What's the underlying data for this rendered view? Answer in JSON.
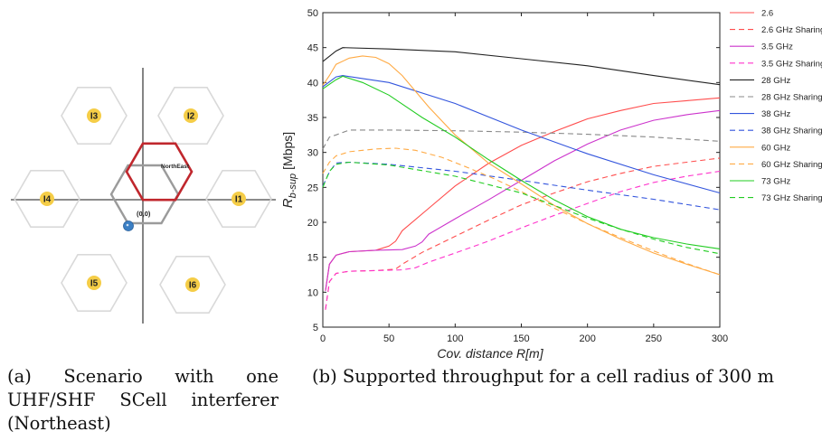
{
  "scenario": {
    "cells": [
      {
        "id": "I3"
      },
      {
        "id": "I2"
      },
      {
        "id": "I4"
      },
      {
        "id": "I1"
      },
      {
        "id": "I5"
      },
      {
        "id": "I6"
      }
    ],
    "northeast_label": "NorthEast",
    "origin_label": "(0,0)",
    "colors": {
      "hex": "#d9d9d9",
      "center": "#9b9b9b",
      "northeast": "#c0272d",
      "axis": "#666666",
      "badge": "#f5cd47",
      "user": "#3b7fc4"
    }
  },
  "captions": {
    "a": [
      "(a) Scenario with one",
      "UHF/SHF SCell interferer",
      "(Northeast)"
    ],
    "b": "(b) Supported throughput for a cell radius of 300 m"
  },
  "chart_data": {
    "type": "line",
    "xlabel": "Cov. distance R[m]",
    "ylabel_main": "R",
    "ylabel_sub": "b-sup",
    "ylabel_unit": "[Mbps]",
    "xlim": [
      0,
      300
    ],
    "ylim": [
      5,
      50
    ],
    "xticks": [
      0,
      50,
      100,
      150,
      200,
      250,
      300
    ],
    "yticks": [
      5,
      10,
      15,
      20,
      25,
      30,
      35,
      40,
      45,
      50
    ],
    "grid": false,
    "legend_position": "right",
    "series": [
      {
        "name": "2.6",
        "color": "#ff4d4d",
        "dash": "solid",
        "points": [
          [
            2,
            10.2
          ],
          [
            5,
            14
          ],
          [
            10,
            15.3
          ],
          [
            20,
            15.8
          ],
          [
            40,
            16
          ],
          [
            50,
            16.6
          ],
          [
            55,
            17.3
          ],
          [
            60,
            18.8
          ],
          [
            80,
            22
          ],
          [
            100,
            25.2
          ],
          [
            125,
            28.4
          ],
          [
            150,
            31
          ],
          [
            175,
            33
          ],
          [
            200,
            34.8
          ],
          [
            225,
            36
          ],
          [
            250,
            37
          ],
          [
            275,
            37.4
          ],
          [
            300,
            37.8
          ]
        ]
      },
      {
        "name": "2.6 GHz Sharing",
        "color": "#ff4d4d",
        "dash": "dashed",
        "points": [
          [
            2,
            7.5
          ],
          [
            5,
            11.5
          ],
          [
            10,
            12.7
          ],
          [
            20,
            13
          ],
          [
            40,
            13.1
          ],
          [
            55,
            13.3
          ],
          [
            60,
            14
          ],
          [
            75,
            15.7
          ],
          [
            100,
            18
          ],
          [
            125,
            20.3
          ],
          [
            150,
            22.5
          ],
          [
            175,
            24.2
          ],
          [
            200,
            25.8
          ],
          [
            225,
            27
          ],
          [
            250,
            28
          ],
          [
            275,
            28.6
          ],
          [
            300,
            29.2
          ]
        ]
      },
      {
        "name": "3.5 GHz",
        "color": "#cc33cc",
        "dash": "solid",
        "points": [
          [
            2,
            10.2
          ],
          [
            5,
            14
          ],
          [
            10,
            15.3
          ],
          [
            20,
            15.8
          ],
          [
            40,
            16
          ],
          [
            60,
            16.1
          ],
          [
            70,
            16.6
          ],
          [
            75,
            17.2
          ],
          [
            80,
            18.3
          ],
          [
            100,
            20.5
          ],
          [
            125,
            23.2
          ],
          [
            150,
            26
          ],
          [
            175,
            28.8
          ],
          [
            200,
            31.2
          ],
          [
            225,
            33.2
          ],
          [
            250,
            34.6
          ],
          [
            275,
            35.4
          ],
          [
            300,
            36
          ]
        ]
      },
      {
        "name": "3.5 GHz Sharing",
        "color": "#ff33cc",
        "dash": "dashed",
        "points": [
          [
            2,
            7.5
          ],
          [
            5,
            11.5
          ],
          [
            10,
            12.7
          ],
          [
            20,
            13
          ],
          [
            40,
            13.1
          ],
          [
            60,
            13.2
          ],
          [
            70,
            13.5
          ],
          [
            80,
            14.3
          ],
          [
            100,
            15.6
          ],
          [
            125,
            17.3
          ],
          [
            150,
            19.2
          ],
          [
            175,
            21
          ],
          [
            200,
            22.7
          ],
          [
            225,
            24.4
          ],
          [
            250,
            25.7
          ],
          [
            275,
            26.6
          ],
          [
            300,
            27.3
          ]
        ]
      },
      {
        "name": "28 GHz",
        "color": "#222222",
        "dash": "solid",
        "points": [
          [
            0,
            43
          ],
          [
            10,
            44.5
          ],
          [
            15,
            45
          ],
          [
            50,
            44.8
          ],
          [
            100,
            44.4
          ],
          [
            150,
            43.4
          ],
          [
            200,
            42.4
          ],
          [
            250,
            41
          ],
          [
            300,
            39.7
          ]
        ]
      },
      {
        "name": "28 GHz Sharing",
        "color": "#888888",
        "dash": "dashed",
        "points": [
          [
            0,
            30.5
          ],
          [
            5,
            32.2
          ],
          [
            10,
            32.5
          ],
          [
            20,
            33.2
          ],
          [
            50,
            33.2
          ],
          [
            100,
            33.1
          ],
          [
            150,
            32.9
          ],
          [
            200,
            32.6
          ],
          [
            250,
            32.2
          ],
          [
            300,
            31.6
          ]
        ]
      },
      {
        "name": "38 GHz",
        "color": "#3355dd",
        "dash": "solid",
        "points": [
          [
            0,
            39.4
          ],
          [
            10,
            40.8
          ],
          [
            15,
            41
          ],
          [
            50,
            40
          ],
          [
            100,
            37
          ],
          [
            150,
            33.2
          ],
          [
            200,
            29.8
          ],
          [
            250,
            26.8
          ],
          [
            300,
            24.2
          ]
        ]
      },
      {
        "name": "38 GHz Sharing",
        "color": "#3355dd",
        "dash": "dashed",
        "points": [
          [
            0,
            25.2
          ],
          [
            5,
            27.2
          ],
          [
            10,
            28.5
          ],
          [
            20,
            28.6
          ],
          [
            50,
            28.3
          ],
          [
            100,
            27.3
          ],
          [
            150,
            26
          ],
          [
            200,
            24.6
          ],
          [
            250,
            23.3
          ],
          [
            300,
            21.8
          ]
        ]
      },
      {
        "name": "60 GHz",
        "color": "#ffaa44",
        "dash": "solid",
        "points": [
          [
            0,
            39.6
          ],
          [
            5,
            41
          ],
          [
            10,
            42.6
          ],
          [
            20,
            43.5
          ],
          [
            30,
            43.8
          ],
          [
            40,
            43.6
          ],
          [
            50,
            42.7
          ],
          [
            60,
            41
          ],
          [
            80,
            36.5
          ],
          [
            100,
            32.5
          ],
          [
            125,
            28.5
          ],
          [
            150,
            25.5
          ],
          [
            175,
            22.4
          ],
          [
            200,
            19.8
          ],
          [
            225,
            17.6
          ],
          [
            250,
            15.6
          ],
          [
            275,
            14
          ],
          [
            300,
            12.5
          ]
        ]
      },
      {
        "name": "60 GHz Sharing",
        "color": "#ffaa44",
        "dash": "dashed",
        "points": [
          [
            0,
            27
          ],
          [
            5,
            28.6
          ],
          [
            10,
            29.5
          ],
          [
            20,
            30.1
          ],
          [
            40,
            30.5
          ],
          [
            55,
            30.6
          ],
          [
            70,
            30.3
          ],
          [
            90,
            29.3
          ],
          [
            110,
            27.8
          ],
          [
            130,
            26.2
          ],
          [
            150,
            24.4
          ],
          [
            175,
            22
          ],
          [
            200,
            19.8
          ],
          [
            225,
            17.8
          ],
          [
            250,
            15.9
          ],
          [
            275,
            14.1
          ],
          [
            300,
            12.5
          ]
        ]
      },
      {
        "name": "73 GHz",
        "color": "#22cc22",
        "dash": "solid",
        "points": [
          [
            0,
            39.1
          ],
          [
            10,
            40.4
          ],
          [
            15,
            40.9
          ],
          [
            30,
            40
          ],
          [
            50,
            38.2
          ],
          [
            75,
            35
          ],
          [
            100,
            32.2
          ],
          [
            125,
            29
          ],
          [
            150,
            26
          ],
          [
            175,
            23.2
          ],
          [
            200,
            20.8
          ],
          [
            225,
            19
          ],
          [
            250,
            17.8
          ],
          [
            275,
            16.9
          ],
          [
            300,
            16.2
          ]
        ]
      },
      {
        "name": "73 GHz Sharing",
        "color": "#22cc22",
        "dash": "dashed",
        "points": [
          [
            0,
            25
          ],
          [
            5,
            27.3
          ],
          [
            10,
            28.3
          ],
          [
            20,
            28.6
          ],
          [
            50,
            28.2
          ],
          [
            100,
            26.6
          ],
          [
            150,
            24.2
          ],
          [
            175,
            22.4
          ],
          [
            200,
            20.6
          ],
          [
            225,
            19
          ],
          [
            250,
            17.6
          ],
          [
            275,
            16.4
          ],
          [
            300,
            15.5
          ]
        ]
      }
    ]
  }
}
